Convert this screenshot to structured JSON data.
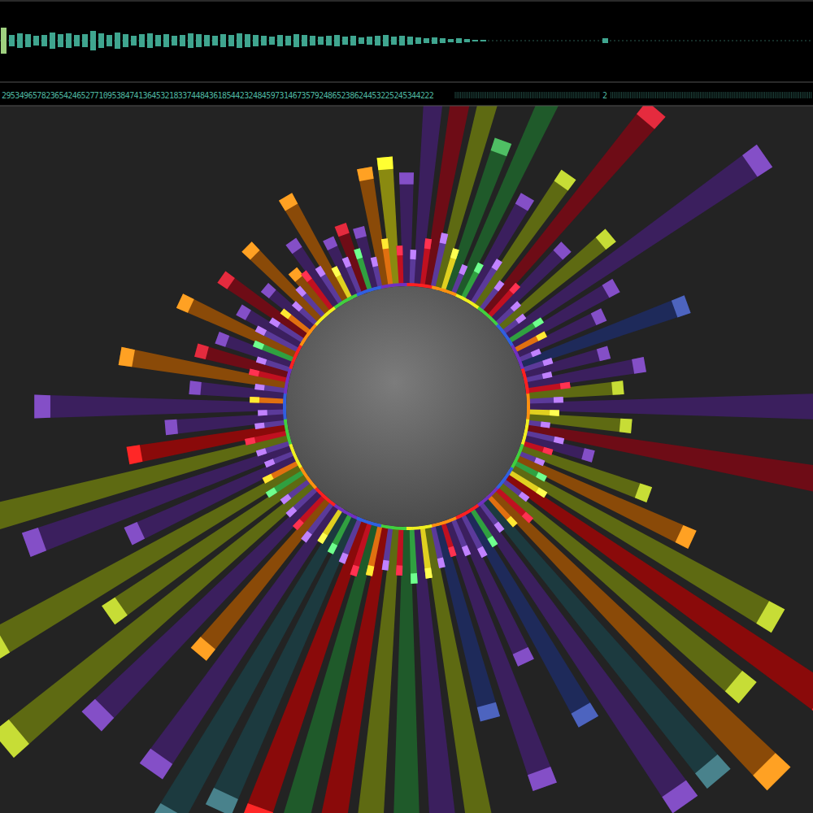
{
  "header": {
    "waveform": {
      "color": "#3fa58f",
      "values": [
        16,
        7,
        9,
        8,
        6,
        7,
        10,
        8,
        9,
        7,
        8,
        12,
        9,
        7,
        10,
        8,
        6,
        8,
        9,
        7,
        8,
        6,
        7,
        9,
        8,
        7,
        6,
        8,
        7,
        9,
        8,
        7,
        6,
        5,
        7,
        6,
        8,
        7,
        6,
        5,
        6,
        7,
        5,
        6,
        4,
        5,
        6,
        7,
        5,
        6,
        5,
        4,
        3,
        4,
        3,
        2,
        3,
        2,
        1,
        1,
        0,
        0,
        0,
        0,
        0,
        0,
        0,
        0,
        0,
        0,
        0,
        0,
        0,
        0,
        3,
        0,
        0,
        0,
        0,
        0,
        0,
        0,
        0,
        0,
        0,
        0,
        0,
        0,
        0,
        0,
        0,
        0,
        0,
        0,
        0,
        0,
        0,
        0,
        0,
        0
      ]
    },
    "counts_text": "29534965782365424652771095384741364532183374484361854423248459731467357924865238624453225245344222",
    "end_label": "2"
  },
  "chart_data": {
    "type": "radial_bar",
    "tick_labels": false,
    "rlim": [
      0,
      500
    ],
    "series": [
      {
        "values": [
          140,
          380,
          380,
          380,
          200,
          400,
          150,
          200,
          330,
          130,
          180,
          390,
          150,
          120,
          220,
          110,
          150,
          120,
          380,
          130,
          400,
          90,
          170,
          240,
          380,
          500,
          400,
          500,
          450,
          450,
          300,
          200,
          350,
          250,
          400,
          400,
          400,
          420,
          400,
          420,
          400,
          400,
          450,
          400,
          250,
          400,
          500,
          300,
          450,
          230,
          350,
          450,
          200,
          150,
          310,
          120,
          210,
          120,
          100,
          160,
          90,
          130,
          80,
          130,
          70,
          100,
          150,
          80,
          90,
          80,
          150,
          160
        ],
        "colors": [
          "#3b1f5e",
          "#3b1f5e",
          "#6e0c16",
          "#5e6a12",
          "#1f5a2a",
          "#1f5a2a",
          "#3b1f5e",
          "#5e6a12",
          "#6e0c16",
          "#3b1f5e",
          "#5e6a12",
          "#3b1f5e",
          "#3b1f5e",
          "#3b1f5e",
          "#1e2a5a",
          "#3b1f5e",
          "#3b1f5e",
          "#5e6a12",
          "#3b1f5e",
          "#5e6a12",
          "#6e0c16",
          "#3b1f5e",
          "#5e6a12",
          "#8a4a08",
          "#5e6a12",
          "#8a0a0a",
          "#5e6a12",
          "#8a4a08",
          "#1c3a3f",
          "#3b1f5e",
          "#1e2a5a",
          "#3b1f5e",
          "#3b1f5e",
          "#1e2a5a",
          "#5e6a12",
          "#3b1f5e",
          "#1f5a2a",
          "#5e6a12",
          "#8a0a0a",
          "#1f5a2a",
          "#8a0a0a",
          "#1c3a3f",
          "#1c3a3f",
          "#3b1f5e",
          "#8a4a08",
          "#3b1f5e",
          "#5e6a12",
          "#5e6a12",
          "#5e6a12",
          "#3b1f5e",
          "#3b1f5e",
          "#5e6a12",
          "#8a0a0a",
          "#3b1f5e",
          "#3b1f5e",
          "#3b1f5e",
          "#8a4a08",
          "#6e0c16",
          "#3b1f5e",
          "#8a4a08",
          "#3b1f5e",
          "#6e0c16",
          "#3b1f5e",
          "#8a4a08",
          "#8a4a08",
          "#3b1f5e",
          "#8a4a08",
          "#3b1f5e",
          "#6e0c16",
          "#3b1f5e",
          "#8a4a08",
          "#8a8a10"
        ]
      },
      {
        "values": [
          45,
          60,
          70,
          55,
          40,
          50,
          65,
          45,
          55,
          40,
          35,
          50,
          45,
          30,
          40,
          35,
          55,
          45,
          40,
          30,
          50,
          40,
          35,
          45,
          55,
          40,
          60,
          50,
          45,
          55,
          60,
          50,
          45,
          55,
          65,
          70,
          60,
          55,
          65,
          70,
          60,
          55,
          50,
          60,
          55,
          50,
          45,
          55,
          50,
          40,
          45,
          55,
          40,
          35,
          45,
          40,
          50,
          45,
          55,
          60,
          50,
          45,
          40,
          50,
          60,
          55,
          45,
          50,
          55,
          40,
          60,
          50
        ],
        "colors": [
          "#5b3a9a",
          "#c01020",
          "#5b3a9a",
          "#e0d020",
          "#5b3a9a",
          "#30a040",
          "#5b3a9a",
          "#5b3a9a",
          "#c01020",
          "#5b3a9a",
          "#5b3a9a",
          "#30a040",
          "#e07010",
          "#5b3a9a",
          "#5b3a9a",
          "#5b3a9a",
          "#c01020",
          "#5b3a9a",
          "#e0d020",
          "#5b3a9a",
          "#5b3a9a",
          "#c01020",
          "#5b3a9a",
          "#30a040",
          "#e0d020",
          "#5b3a9a",
          "#c01020",
          "#e07010",
          "#5b3a9a",
          "#30a040",
          "#5b3a9a",
          "#5b3a9a",
          "#c01020",
          "#5b3a9a",
          "#e0d020",
          "#30a040",
          "#c01020",
          "#5b3a9a",
          "#e07010",
          "#c01020",
          "#5b3a9a",
          "#30a040",
          "#e0d020",
          "#5b3a9a",
          "#c01020",
          "#5b3a9a",
          "#5b3a9a",
          "#30a040",
          "#e07010",
          "#5b3a9a",
          "#5b3a9a",
          "#c01020",
          "#5b3a9a",
          "#5b3a9a",
          "#e07010",
          "#5b3a9a",
          "#c01020",
          "#5b3a9a",
          "#30a040",
          "#5b3a9a",
          "#5b3a9a",
          "#e07010",
          "#5b3a9a",
          "#5b3a9a",
          "#c01020",
          "#5b3a9a",
          "#e0d020",
          "#5b3a9a",
          "#30a040",
          "#5b3a9a",
          "#e07010",
          "#c01020"
        ]
      }
    ]
  }
}
